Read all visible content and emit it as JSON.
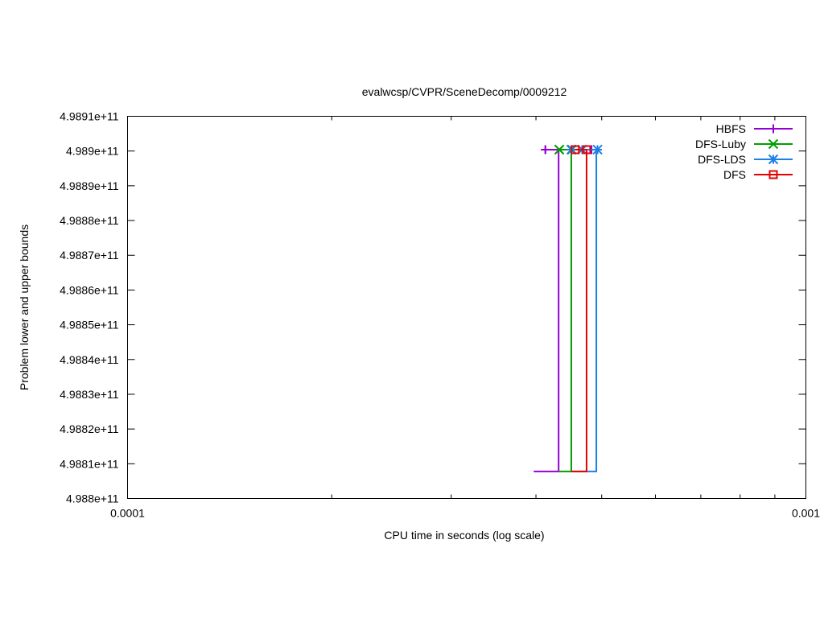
{
  "chart_data": {
    "type": "line",
    "title": "evalwcsp/CVPR/SceneDecomp/0009212",
    "xlabel": "CPU time in seconds (log scale)",
    "ylabel": "Problem lower and upper bounds",
    "xscale": "log",
    "xlim": [
      0.0001,
      0.001
    ],
    "ylim": [
      498800000000,
      498910000000
    ],
    "xticks": [
      {
        "value": 0.0001,
        "label": "0.0001"
      },
      {
        "value": 0.001,
        "label": "0.001"
      }
    ],
    "yticks": [
      {
        "value": 498800000000,
        "label": "4.988e+11"
      },
      {
        "value": 498810000000,
        "label": "4.9881e+11"
      },
      {
        "value": 498820000000,
        "label": "4.9882e+11"
      },
      {
        "value": 498830000000,
        "label": "4.9883e+11"
      },
      {
        "value": 498840000000,
        "label": "4.9884e+11"
      },
      {
        "value": 498850000000,
        "label": "4.9885e+11"
      },
      {
        "value": 498860000000,
        "label": "4.9886e+11"
      },
      {
        "value": 498870000000,
        "label": "4.9887e+11"
      },
      {
        "value": 498880000000,
        "label": "4.9888e+11"
      },
      {
        "value": 498890000000,
        "label": "4.9889e+11"
      },
      {
        "value": 498900000000,
        "label": "4.989e+11"
      },
      {
        "value": 498910000000,
        "label": "4.9891e+11"
      }
    ],
    "grid": false,
    "legend_position": "top-right",
    "series": [
      {
        "name": "HBFS",
        "color": "#9400d3",
        "marker": "plus",
        "upper": {
          "x": [
            0.000413,
            0.000413,
            0.000483
          ],
          "y": [
            498900400000,
            498900400000,
            498900400000
          ]
        },
        "lower": {
          "x": [
            0.000397,
            0.000432,
            0.000432
          ],
          "y": [
            498807800000,
            498807800000,
            498900400000
          ]
        }
      },
      {
        "name": "DFS-Luby",
        "color": "#009e00",
        "marker": "cross",
        "upper": {
          "x": [
            0.000433,
            0.000433,
            0.000452
          ],
          "y": [
            498900400000,
            498900400000,
            498900400000
          ]
        },
        "lower": {
          "x": [
            0.000432,
            0.000451,
            0.000451
          ],
          "y": [
            498807800000,
            498807800000,
            498900400000
          ]
        }
      },
      {
        "name": "DFS-LDS",
        "color": "#1e7fe6",
        "marker": "star",
        "upper": {
          "x": [
            0.000451,
            0.000468,
            0.000493
          ],
          "y": [
            498900400000,
            498900400000,
            498900400000
          ]
        },
        "lower": {
          "x": [
            0.000451,
            0.000491,
            0.000491
          ],
          "y": [
            498807800000,
            498807800000,
            498900400000
          ]
        }
      },
      {
        "name": "DFS",
        "color": "#e60000",
        "marker": "square",
        "upper": {
          "x": [
            0.000457,
            0.000475
          ],
          "y": [
            498900400000,
            498900400000
          ]
        },
        "lower": {
          "x": [
            0.000451,
            0.000475,
            0.000475
          ],
          "y": [
            498807800000,
            498807800000,
            498900400000
          ]
        }
      }
    ]
  }
}
